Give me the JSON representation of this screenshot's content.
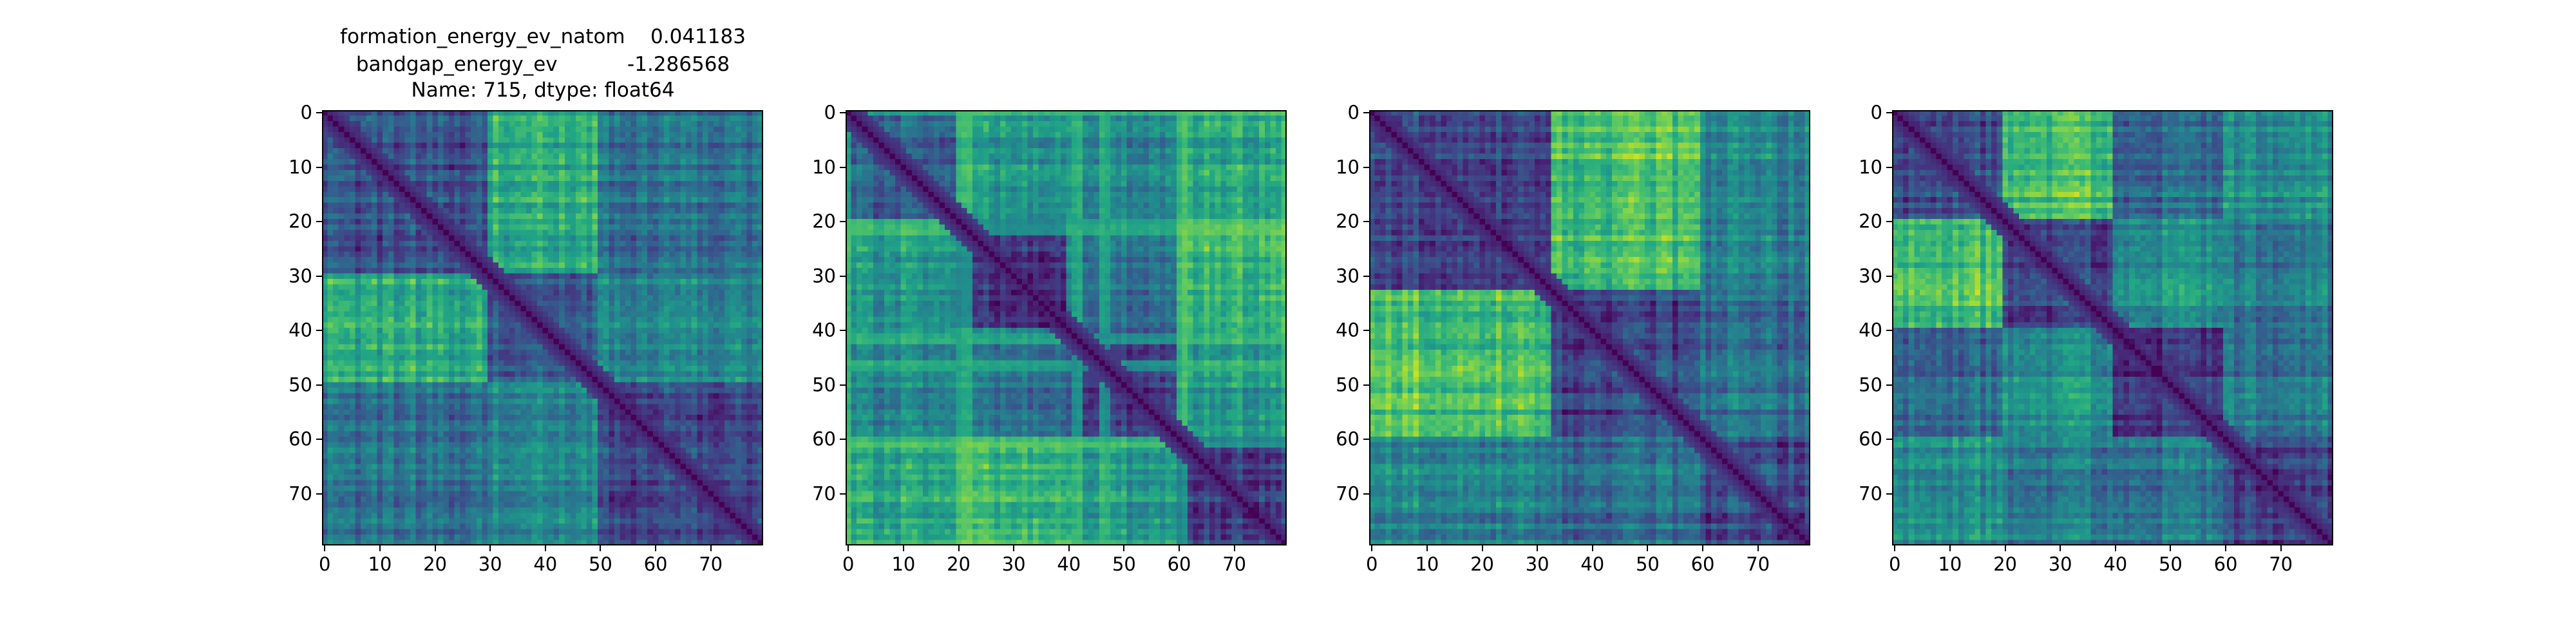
{
  "title_lines": [
    "formation_energy_ev_natom    0.041183",
    "bandgap_energy_ev           -1.286568",
    "Name: 715, dtype: float64"
  ],
  "chart_data": [
    {
      "type": "heatmap",
      "colormap": "viridis",
      "size": [
        80,
        80
      ],
      "xlim": [
        0,
        79
      ],
      "ylim": [
        79,
        0
      ],
      "xticks": [
        0,
        10,
        20,
        30,
        40,
        50,
        60,
        70
      ],
      "yticks": [
        0,
        10,
        20,
        30,
        40,
        50,
        60,
        70
      ],
      "blocks": [
        0,
        30,
        50,
        80
      ],
      "block_levels": [
        [
          0.25,
          0.62,
          0.35
        ],
        [
          0.72,
          0.3,
          0.45
        ],
        [
          0.38,
          0.48,
          0.18
        ]
      ],
      "diagonal": 0.0
    },
    {
      "type": "heatmap",
      "colormap": "viridis",
      "size": [
        80,
        80
      ],
      "xlim": [
        0,
        79
      ],
      "ylim": [
        79,
        0
      ],
      "xticks": [
        0,
        10,
        20,
        30,
        40,
        50,
        60,
        70
      ],
      "yticks": [
        0,
        10,
        20,
        30,
        40,
        50,
        60,
        70
      ],
      "blocks": [
        0,
        20,
        40,
        60,
        80
      ],
      "block_levels": [
        [
          0.3,
          0.55,
          0.45,
          0.6
        ],
        [
          0.55,
          0.2,
          0.4,
          0.7
        ],
        [
          0.45,
          0.4,
          0.18,
          0.55
        ],
        [
          0.6,
          0.7,
          0.55,
          0.2
        ]
      ],
      "bright_lines": [
        0,
        20,
        21,
        22,
        41,
        42,
        46,
        47,
        60,
        61
      ],
      "diagonal": 0.0
    },
    {
      "type": "heatmap",
      "colormap": "viridis",
      "size": [
        80,
        80
      ],
      "xlim": [
        0,
        79
      ],
      "ylim": [
        79,
        0
      ],
      "xticks": [
        0,
        10,
        20,
        30,
        40,
        50,
        60,
        70
      ],
      "yticks": [
        0,
        10,
        20,
        30,
        40,
        50,
        60,
        70
      ],
      "blocks": [
        0,
        33,
        60,
        80
      ],
      "block_levels": [
        [
          0.22,
          0.7,
          0.45
        ],
        [
          0.7,
          0.2,
          0.35
        ],
        [
          0.45,
          0.35,
          0.22
        ]
      ],
      "diagonal": 0.0
    },
    {
      "type": "heatmap",
      "colormap": "viridis",
      "size": [
        80,
        80
      ],
      "xlim": [
        0,
        79
      ],
      "ylim": [
        79,
        0
      ],
      "xticks": [
        0,
        10,
        20,
        30,
        40,
        50,
        60,
        70
      ],
      "yticks": [
        0,
        10,
        20,
        30,
        40,
        50,
        60,
        70
      ],
      "blocks": [
        0,
        20,
        40,
        60,
        80
      ],
      "block_levels": [
        [
          0.25,
          0.7,
          0.35,
          0.5
        ],
        [
          0.7,
          0.2,
          0.5,
          0.4
        ],
        [
          0.35,
          0.5,
          0.18,
          0.4
        ],
        [
          0.5,
          0.4,
          0.4,
          0.2
        ]
      ],
      "diagonal": 0.0
    }
  ]
}
